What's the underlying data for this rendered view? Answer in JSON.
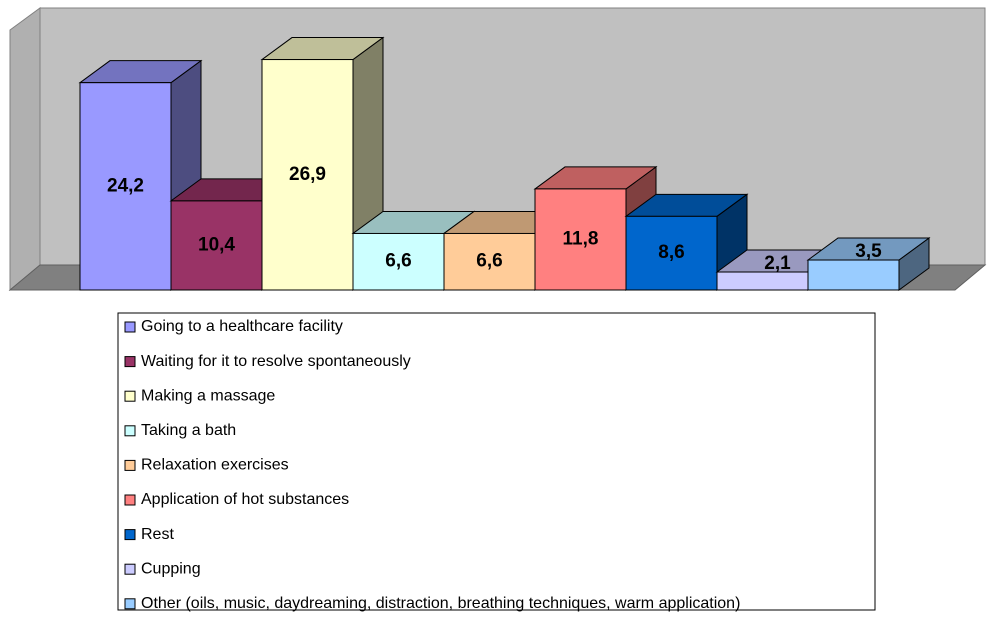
{
  "chart_data": {
    "type": "bar3d",
    "categories": [
      "Going to a healthcare facility",
      "Waiting for it to resolve spontaneously",
      "Making a massage",
      "Taking a bath",
      "Relaxation exercises",
      "Application of hot substances",
      "Rest",
      "Cupping",
      "Other (oils, music, daydreaming, distraction, breathing techniques, warm application)"
    ],
    "values": [
      24.2,
      10.4,
      26.9,
      6.6,
      6.6,
      11.8,
      8.6,
      2.1,
      3.5
    ],
    "value_labels": [
      "24,2",
      "10,4",
      "26,9",
      "6,6",
      "6,6",
      "11,8",
      "8,6",
      "2,1",
      "3,5"
    ],
    "colors": [
      "#9999ff",
      "#993366",
      "#ffffcc",
      "#ccffff",
      "#ffcc99",
      "#ff8080",
      "#0066cc",
      "#ccccff",
      "#99ccff"
    ],
    "ylim": [
      0,
      30
    ]
  }
}
